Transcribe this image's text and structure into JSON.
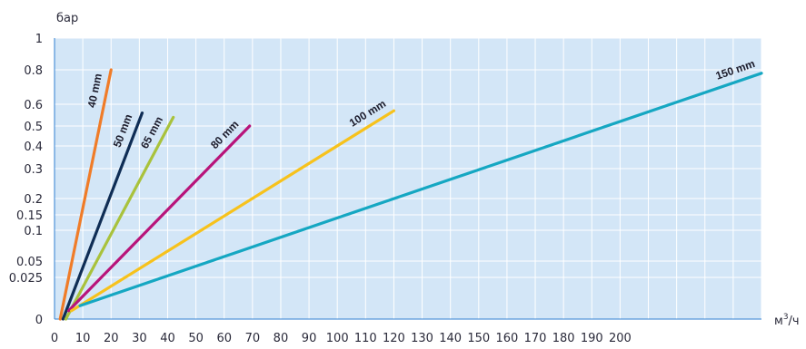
{
  "chart_data": {
    "type": "line",
    "title": "",
    "ylabel": "бар",
    "xlabel_base": "м",
    "xlabel_sup": "3",
    "xlabel_tail": "/ч",
    "xlim": [
      0,
      250
    ],
    "x_ticks": [
      0,
      10,
      20,
      30,
      40,
      50,
      60,
      70,
      80,
      90,
      100,
      110,
      120,
      130,
      140,
      150,
      160,
      170,
      180,
      190,
      200
    ],
    "x_tick_labels": [
      "0",
      "10",
      "20",
      "30",
      "40",
      "50",
      "60",
      "70",
      "80",
      "90",
      "100",
      "110",
      "120",
      "130",
      "140",
      "150",
      "160",
      "170",
      "180",
      "190",
      "200"
    ],
    "y_ticks": [
      0,
      0.025,
      0.05,
      0.1,
      0.15,
      0.2,
      0.3,
      0.4,
      0.5,
      0.6,
      0.8,
      1
    ],
    "y_tick_labels": [
      "0",
      "0.025",
      "0.05",
      "0.1",
      "0.15",
      "0.2",
      "0.3",
      "0.4",
      "0.5",
      "0.6",
      "0.8",
      "1"
    ],
    "y_scale": "non-linear (as printed)",
    "grid": true,
    "background": "#d3e6f7",
    "grid_color": "#ffffff",
    "series": [
      {
        "name": "40 mm",
        "color": "#f07c28",
        "x": [
          2,
          20
        ],
        "y": [
          0,
          0.8
        ]
      },
      {
        "name": "50 mm",
        "color": "#0f2d55",
        "x": [
          3,
          31
        ],
        "y": [
          0,
          0.56
        ]
      },
      {
        "name": "65 mm",
        "color": "#a9c23c",
        "x": [
          4,
          42
        ],
        "y": [
          0,
          0.54
        ]
      },
      {
        "name": "80 mm",
        "color": "#b8147a",
        "x": [
          5,
          69
        ],
        "y": [
          0.005,
          0.5
        ]
      },
      {
        "name": "100 mm",
        "color": "#f7c21c",
        "x": [
          6,
          120
        ],
        "y": [
          0.005,
          0.57
        ]
      },
      {
        "name": "150 mm",
        "color": "#15a7c2",
        "x": [
          9,
          250
        ],
        "y": [
          0.008,
          0.78
        ]
      }
    ]
  }
}
